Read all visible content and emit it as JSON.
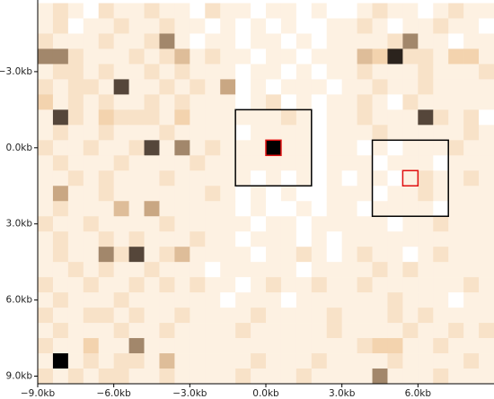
{
  "chart_data": {
    "type": "heatmap",
    "x": [
      -8.7,
      -8.1,
      -7.5,
      -6.9,
      -6.3,
      -5.7,
      -5.1,
      -4.5,
      -3.9,
      -3.3,
      -2.7,
      -2.1,
      -1.5,
      -0.9,
      -0.3,
      0.3,
      0.9,
      1.5,
      2.1,
      2.7,
      3.3,
      3.9,
      4.5,
      5.1,
      5.7,
      6.3,
      6.9,
      7.5,
      8.1,
      8.7
    ],
    "y": [
      -5.4,
      -4.8,
      -4.2,
      -3.6,
      -3.0,
      -2.4,
      -1.8,
      -1.2,
      -0.6,
      0.0,
      0.6,
      1.2,
      1.8,
      2.4,
      3.0,
      3.6,
      4.2,
      4.8,
      5.4,
      6.0,
      6.6,
      7.2,
      7.8,
      8.4,
      9.0
    ],
    "z": [
      [
        1,
        2,
        1,
        0,
        2,
        1,
        1,
        2,
        1,
        1,
        0,
        2,
        1,
        1,
        0,
        1,
        1,
        0,
        1,
        0,
        0,
        1,
        2,
        1,
        1,
        0,
        1,
        2,
        1,
        1
      ],
      [
        1,
        2,
        0,
        1,
        1,
        2,
        1,
        1,
        2,
        1,
        1,
        0,
        1,
        0,
        1,
        0,
        1,
        0,
        0,
        1,
        1,
        2,
        1,
        0,
        1,
        1,
        2,
        1,
        1,
        0
      ],
      [
        2,
        1,
        1,
        1,
        2,
        1,
        1,
        2,
        6,
        1,
        0,
        1,
        1,
        0,
        1,
        1,
        0,
        1,
        0,
        1,
        1,
        1,
        1,
        2,
        6,
        1,
        1,
        0,
        1,
        1
      ],
      [
        6,
        6,
        2,
        1,
        1,
        1,
        2,
        1,
        2,
        4,
        1,
        2,
        1,
        1,
        0,
        1,
        1,
        0,
        1,
        1,
        1,
        4,
        3,
        9,
        2,
        2,
        1,
        3,
        3,
        1
      ],
      [
        1,
        2,
        2,
        1,
        2,
        1,
        1,
        2,
        1,
        2,
        1,
        1,
        1,
        0,
        1,
        1,
        0,
        1,
        0,
        1,
        1,
        2,
        1,
        1,
        1,
        2,
        1,
        1,
        1,
        2
      ],
      [
        2,
        1,
        2,
        2,
        1,
        8,
        1,
        1,
        2,
        1,
        2,
        1,
        5,
        0,
        1,
        0,
        1,
        1,
        1,
        0,
        1,
        1,
        2,
        1,
        1,
        2,
        1,
        1,
        1,
        1
      ],
      [
        3,
        1,
        2,
        1,
        2,
        1,
        1,
        2,
        1,
        2,
        1,
        1,
        1,
        0,
        1,
        2,
        0,
        1,
        0,
        1,
        1,
        2,
        1,
        0,
        2,
        1,
        1,
        1,
        1,
        1
      ],
      [
        1,
        8,
        2,
        1,
        3,
        2,
        2,
        2,
        1,
        3,
        1,
        1,
        1,
        1,
        1,
        1,
        2,
        1,
        0,
        1,
        1,
        2,
        1,
        1,
        1,
        8,
        2,
        1,
        2,
        0
      ],
      [
        1,
        2,
        1,
        1,
        2,
        1,
        1,
        1,
        2,
        1,
        1,
        1,
        1,
        0,
        1,
        1,
        1,
        1,
        0,
        1,
        1,
        1,
        2,
        1,
        1,
        1,
        1,
        1,
        2,
        1
      ],
      [
        2,
        1,
        1,
        2,
        1,
        1,
        2,
        8,
        1,
        6,
        1,
        2,
        1,
        1,
        1,
        10,
        1,
        1,
        0,
        1,
        1,
        0,
        1,
        0,
        1,
        1,
        1,
        2,
        1,
        1
      ],
      [
        1,
        2,
        1,
        1,
        1,
        2,
        1,
        1,
        1,
        1,
        2,
        1,
        1,
        1,
        1,
        1,
        1,
        1,
        0,
        1,
        1,
        1,
        0,
        1,
        1,
        1,
        0,
        1,
        1,
        1
      ],
      [
        1,
        1,
        2,
        1,
        2,
        1,
        1,
        1,
        2,
        1,
        1,
        1,
        1,
        1,
        0,
        1,
        0,
        1,
        0,
        1,
        0,
        1,
        1,
        0,
        1,
        2,
        1,
        1,
        2,
        1
      ],
      [
        1,
        5,
        1,
        1,
        2,
        1,
        1,
        1,
        1,
        1,
        1,
        2,
        1,
        0,
        1,
        0,
        1,
        0,
        0,
        1,
        1,
        1,
        0,
        1,
        1,
        2,
        1,
        1,
        1,
        1
      ],
      [
        1,
        2,
        1,
        1,
        1,
        4,
        1,
        5,
        1,
        1,
        1,
        1,
        1,
        0,
        1,
        0,
        0,
        1,
        0,
        1,
        1,
        0,
        1,
        1,
        1,
        1,
        0,
        1,
        1,
        1
      ],
      [
        2,
        1,
        1,
        2,
        1,
        1,
        1,
        1,
        2,
        1,
        1,
        1,
        1,
        1,
        0,
        1,
        1,
        0,
        1,
        1,
        1,
        1,
        1,
        0,
        1,
        1,
        2,
        1,
        1,
        1
      ],
      [
        1,
        2,
        1,
        1,
        2,
        1,
        2,
        1,
        1,
        1,
        2,
        1,
        1,
        0,
        1,
        1,
        1,
        0,
        1,
        0,
        1,
        1,
        1,
        1,
        1,
        1,
        1,
        1,
        1,
        1
      ],
      [
        1,
        2,
        1,
        1,
        6,
        2,
        8,
        1,
        2,
        4,
        1,
        1,
        1,
        1,
        0,
        1,
        1,
        2,
        1,
        0,
        1,
        2,
        1,
        1,
        0,
        1,
        2,
        1,
        1,
        1
      ],
      [
        1,
        1,
        2,
        1,
        2,
        1,
        1,
        2,
        1,
        1,
        1,
        0,
        1,
        1,
        1,
        1,
        1,
        0,
        1,
        1,
        1,
        1,
        2,
        1,
        2,
        1,
        1,
        1,
        1,
        1
      ],
      [
        2,
        1,
        1,
        2,
        1,
        1,
        2,
        1,
        2,
        1,
        2,
        1,
        1,
        0,
        1,
        2,
        1,
        1,
        2,
        1,
        1,
        2,
        1,
        1,
        1,
        1,
        1,
        1,
        2,
        1
      ],
      [
        1,
        2,
        1,
        1,
        1,
        2,
        1,
        1,
        1,
        1,
        1,
        1,
        0,
        1,
        1,
        1,
        0,
        1,
        1,
        1,
        1,
        1,
        1,
        2,
        1,
        1,
        1,
        0,
        1,
        1
      ],
      [
        2,
        1,
        1,
        2,
        2,
        1,
        2,
        1,
        1,
        2,
        1,
        1,
        1,
        1,
        2,
        1,
        1,
        1,
        1,
        2,
        1,
        1,
        1,
        2,
        1,
        2,
        1,
        1,
        1,
        1
      ],
      [
        1,
        2,
        1,
        1,
        1,
        2,
        1,
        1,
        2,
        1,
        1,
        1,
        1,
        2,
        1,
        1,
        1,
        1,
        1,
        2,
        1,
        1,
        1,
        1,
        2,
        1,
        1,
        2,
        1,
        2
      ],
      [
        2,
        1,
        1,
        3,
        1,
        1,
        6,
        1,
        1,
        1,
        1,
        1,
        1,
        1,
        1,
        1,
        1,
        1,
        1,
        1,
        1,
        2,
        3,
        3,
        1,
        1,
        2,
        1,
        1,
        1
      ],
      [
        1,
        10,
        1,
        2,
        1,
        2,
        2,
        1,
        4,
        1,
        1,
        1,
        1,
        1,
        2,
        1,
        1,
        1,
        2,
        1,
        1,
        1,
        1,
        2,
        1,
        1,
        1,
        1,
        2,
        1
      ],
      [
        2,
        1,
        2,
        1,
        2,
        2,
        1,
        1,
        2,
        1,
        1,
        1,
        1,
        2,
        1,
        1,
        1,
        2,
        1,
        1,
        1,
        1,
        6,
        1,
        1,
        1,
        2,
        1,
        1,
        1
      ]
    ],
    "zlim": [
      0,
      10
    ],
    "colorscale": [
      [
        0,
        "#ffffff"
      ],
      [
        0.1,
        "#fdf1e2"
      ],
      [
        0.3,
        "#f3d3ae"
      ],
      [
        0.5,
        "#c9a783"
      ],
      [
        0.8,
        "#55463a"
      ],
      [
        1,
        "#000000"
      ]
    ],
    "xlim": [
      -9.0,
      9.0
    ],
    "ylim": [
      -5.7,
      9.3
    ],
    "y_inverted": true,
    "xticks": [
      {
        "value": -9.0,
        "label": "−9.0kb"
      },
      {
        "value": -6.0,
        "label": "−6.0kb"
      },
      {
        "value": -3.0,
        "label": "−3.0kb"
      },
      {
        "value": 0.0,
        "label": "0.0kb"
      },
      {
        "value": 3.0,
        "label": "3.0kb"
      },
      {
        "value": 6.0,
        "label": "6.0kb"
      }
    ],
    "yticks": [
      {
        "value": -3.0,
        "label": "−3.0kb"
      },
      {
        "value": 0.0,
        "label": "0.0kb"
      },
      {
        "value": 3.0,
        "label": "3.0kb"
      },
      {
        "value": 6.0,
        "label": "6.0kb"
      },
      {
        "value": 9.0,
        "label": "9.0kb"
      }
    ],
    "boxes": [
      {
        "x": [
          -1.2,
          1.8
        ],
        "y": [
          -1.5,
          1.5
        ],
        "color": "#000000"
      },
      {
        "x": [
          4.2,
          7.2
        ],
        "y": [
          -0.3,
          2.7
        ],
        "color": "#000000"
      },
      {
        "x": [
          0.0,
          0.6
        ],
        "y": [
          -0.3,
          0.3
        ],
        "color": "#e01010"
      },
      {
        "x": [
          5.4,
          6.0
        ],
        "y": [
          0.9,
          1.5
        ],
        "color": "#e01010"
      }
    ]
  }
}
